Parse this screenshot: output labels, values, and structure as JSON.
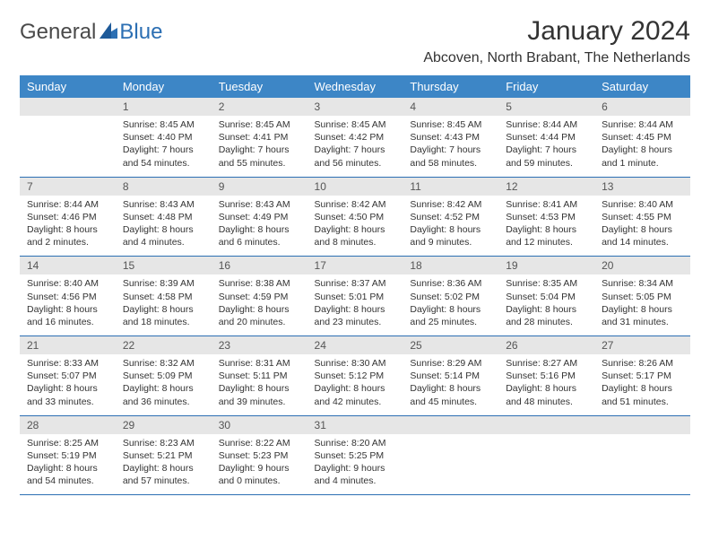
{
  "logo": {
    "word1": "General",
    "word2": "Blue"
  },
  "title": {
    "month_year": "January 2024",
    "location": "Abcoven, North Brabant, The Netherlands"
  },
  "colors": {
    "header_bg": "#3d86c6",
    "daynum_bg": "#e6e6e6",
    "row_border": "#2c6fb3",
    "text": "#333333"
  },
  "weekdays": [
    "Sunday",
    "Monday",
    "Tuesday",
    "Wednesday",
    "Thursday",
    "Friday",
    "Saturday"
  ],
  "weeks": [
    [
      {
        "blank": true
      },
      {
        "n": "1",
        "sr": "Sunrise: 8:45 AM",
        "ss": "Sunset: 4:40 PM",
        "dl": "Daylight: 7 hours and 54 minutes."
      },
      {
        "n": "2",
        "sr": "Sunrise: 8:45 AM",
        "ss": "Sunset: 4:41 PM",
        "dl": "Daylight: 7 hours and 55 minutes."
      },
      {
        "n": "3",
        "sr": "Sunrise: 8:45 AM",
        "ss": "Sunset: 4:42 PM",
        "dl": "Daylight: 7 hours and 56 minutes."
      },
      {
        "n": "4",
        "sr": "Sunrise: 8:45 AM",
        "ss": "Sunset: 4:43 PM",
        "dl": "Daylight: 7 hours and 58 minutes."
      },
      {
        "n": "5",
        "sr": "Sunrise: 8:44 AM",
        "ss": "Sunset: 4:44 PM",
        "dl": "Daylight: 7 hours and 59 minutes."
      },
      {
        "n": "6",
        "sr": "Sunrise: 8:44 AM",
        "ss": "Sunset: 4:45 PM",
        "dl": "Daylight: 8 hours and 1 minute."
      }
    ],
    [
      {
        "n": "7",
        "sr": "Sunrise: 8:44 AM",
        "ss": "Sunset: 4:46 PM",
        "dl": "Daylight: 8 hours and 2 minutes."
      },
      {
        "n": "8",
        "sr": "Sunrise: 8:43 AM",
        "ss": "Sunset: 4:48 PM",
        "dl": "Daylight: 8 hours and 4 minutes."
      },
      {
        "n": "9",
        "sr": "Sunrise: 8:43 AM",
        "ss": "Sunset: 4:49 PM",
        "dl": "Daylight: 8 hours and 6 minutes."
      },
      {
        "n": "10",
        "sr": "Sunrise: 8:42 AM",
        "ss": "Sunset: 4:50 PM",
        "dl": "Daylight: 8 hours and 8 minutes."
      },
      {
        "n": "11",
        "sr": "Sunrise: 8:42 AM",
        "ss": "Sunset: 4:52 PM",
        "dl": "Daylight: 8 hours and 9 minutes."
      },
      {
        "n": "12",
        "sr": "Sunrise: 8:41 AM",
        "ss": "Sunset: 4:53 PM",
        "dl": "Daylight: 8 hours and 12 minutes."
      },
      {
        "n": "13",
        "sr": "Sunrise: 8:40 AM",
        "ss": "Sunset: 4:55 PM",
        "dl": "Daylight: 8 hours and 14 minutes."
      }
    ],
    [
      {
        "n": "14",
        "sr": "Sunrise: 8:40 AM",
        "ss": "Sunset: 4:56 PM",
        "dl": "Daylight: 8 hours and 16 minutes."
      },
      {
        "n": "15",
        "sr": "Sunrise: 8:39 AM",
        "ss": "Sunset: 4:58 PM",
        "dl": "Daylight: 8 hours and 18 minutes."
      },
      {
        "n": "16",
        "sr": "Sunrise: 8:38 AM",
        "ss": "Sunset: 4:59 PM",
        "dl": "Daylight: 8 hours and 20 minutes."
      },
      {
        "n": "17",
        "sr": "Sunrise: 8:37 AM",
        "ss": "Sunset: 5:01 PM",
        "dl": "Daylight: 8 hours and 23 minutes."
      },
      {
        "n": "18",
        "sr": "Sunrise: 8:36 AM",
        "ss": "Sunset: 5:02 PM",
        "dl": "Daylight: 8 hours and 25 minutes."
      },
      {
        "n": "19",
        "sr": "Sunrise: 8:35 AM",
        "ss": "Sunset: 5:04 PM",
        "dl": "Daylight: 8 hours and 28 minutes."
      },
      {
        "n": "20",
        "sr": "Sunrise: 8:34 AM",
        "ss": "Sunset: 5:05 PM",
        "dl": "Daylight: 8 hours and 31 minutes."
      }
    ],
    [
      {
        "n": "21",
        "sr": "Sunrise: 8:33 AM",
        "ss": "Sunset: 5:07 PM",
        "dl": "Daylight: 8 hours and 33 minutes."
      },
      {
        "n": "22",
        "sr": "Sunrise: 8:32 AM",
        "ss": "Sunset: 5:09 PM",
        "dl": "Daylight: 8 hours and 36 minutes."
      },
      {
        "n": "23",
        "sr": "Sunrise: 8:31 AM",
        "ss": "Sunset: 5:11 PM",
        "dl": "Daylight: 8 hours and 39 minutes."
      },
      {
        "n": "24",
        "sr": "Sunrise: 8:30 AM",
        "ss": "Sunset: 5:12 PM",
        "dl": "Daylight: 8 hours and 42 minutes."
      },
      {
        "n": "25",
        "sr": "Sunrise: 8:29 AM",
        "ss": "Sunset: 5:14 PM",
        "dl": "Daylight: 8 hours and 45 minutes."
      },
      {
        "n": "26",
        "sr": "Sunrise: 8:27 AM",
        "ss": "Sunset: 5:16 PM",
        "dl": "Daylight: 8 hours and 48 minutes."
      },
      {
        "n": "27",
        "sr": "Sunrise: 8:26 AM",
        "ss": "Sunset: 5:17 PM",
        "dl": "Daylight: 8 hours and 51 minutes."
      }
    ],
    [
      {
        "n": "28",
        "sr": "Sunrise: 8:25 AM",
        "ss": "Sunset: 5:19 PM",
        "dl": "Daylight: 8 hours and 54 minutes."
      },
      {
        "n": "29",
        "sr": "Sunrise: 8:23 AM",
        "ss": "Sunset: 5:21 PM",
        "dl": "Daylight: 8 hours and 57 minutes."
      },
      {
        "n": "30",
        "sr": "Sunrise: 8:22 AM",
        "ss": "Sunset: 5:23 PM",
        "dl": "Daylight: 9 hours and 0 minutes."
      },
      {
        "n": "31",
        "sr": "Sunrise: 8:20 AM",
        "ss": "Sunset: 5:25 PM",
        "dl": "Daylight: 9 hours and 4 minutes."
      },
      {
        "blank": true
      },
      {
        "blank": true
      },
      {
        "blank": true
      }
    ]
  ]
}
